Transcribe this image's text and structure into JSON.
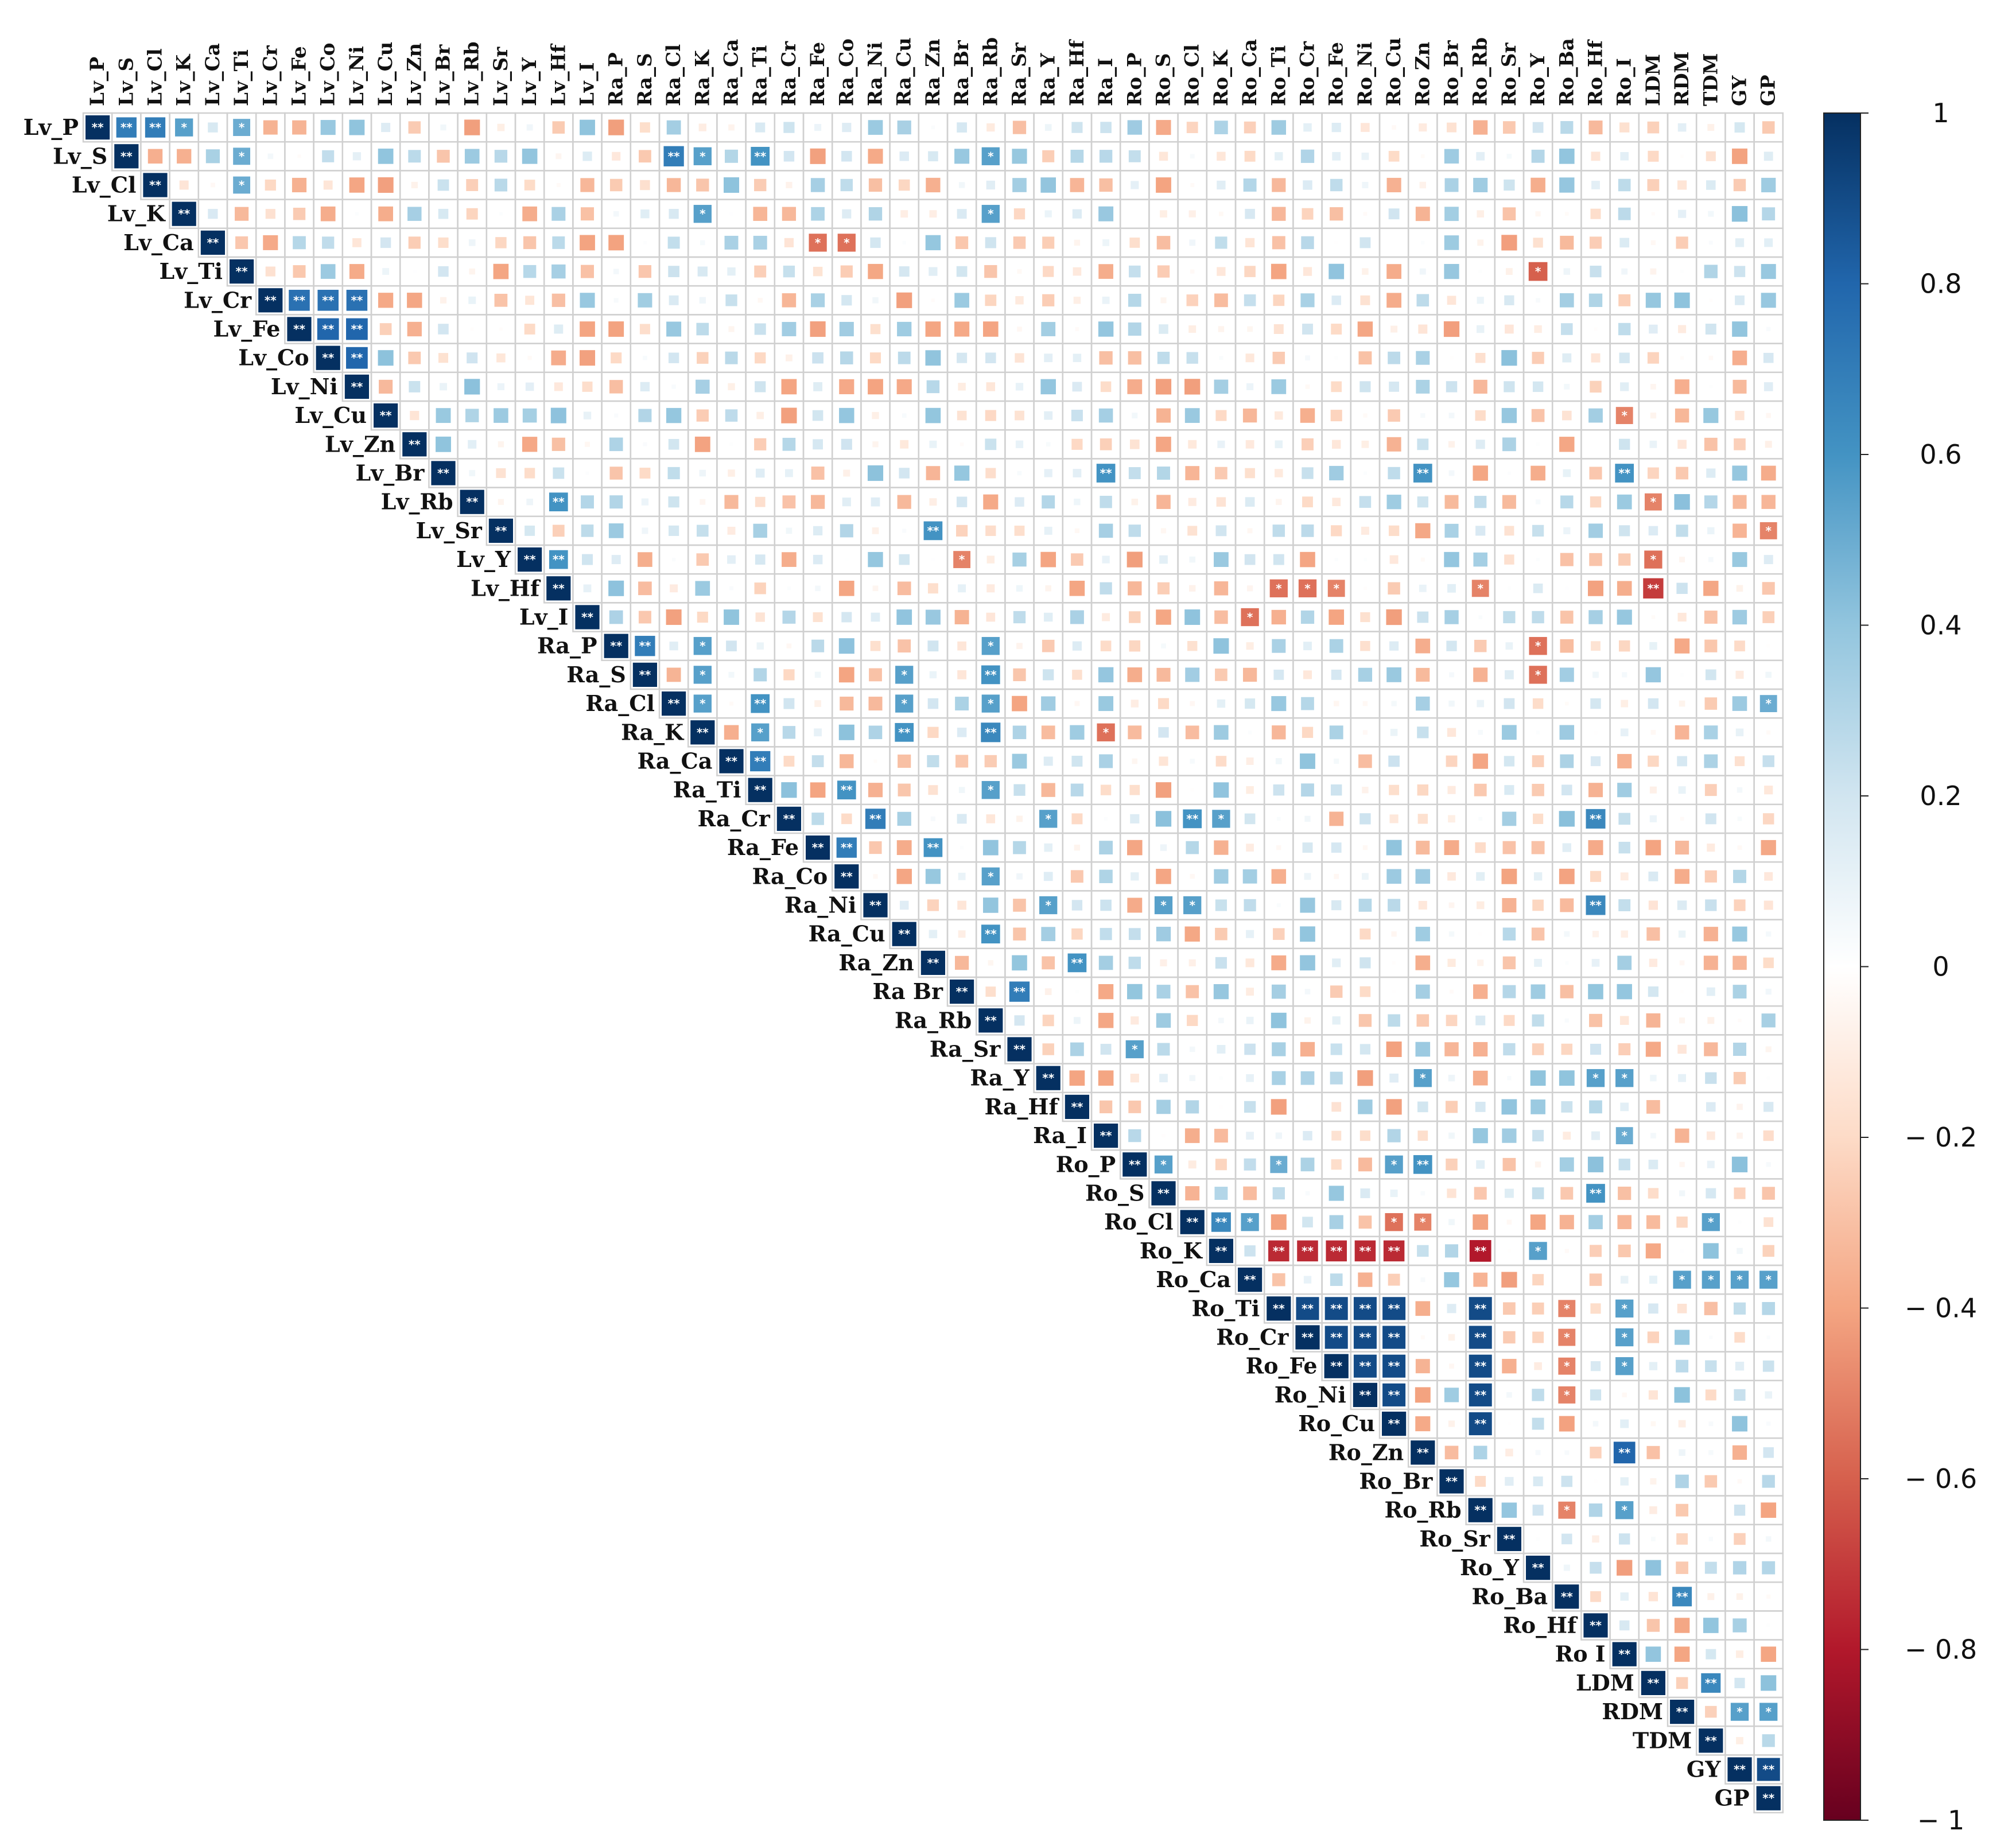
{
  "chart_data": {
    "type": "heatmap",
    "subtype": "upper-triangle correlation matrix",
    "value_range": [
      -1,
      1
    ],
    "variables": [
      "Lv_P",
      "Lv_S",
      "Lv_Cl",
      "Lv_K",
      "Lv_Ca",
      "Lv_Ti",
      "Lv_Cr",
      "Lv_Fe",
      "Lv_Co",
      "Lv_Ni",
      "Lv_Cu",
      "Lv_Zn",
      "Lv_Br",
      "Lv_Rb",
      "Lv_Sr",
      "Lv_Y",
      "Lv_Hf",
      "Lv_I",
      "Ra_P",
      "Ra_S",
      "Ra_Cl",
      "Ra_K",
      "Ra_Ca",
      "Ra_Ti",
      "Ra_Cr",
      "Ra_Fe",
      "Ra_Co",
      "Ra_Ni",
      "Ra_Cu",
      "Ra_Zn",
      "Ra_Br",
      "Ra_Rb",
      "Ra_Sr",
      "Ra_Y",
      "Ra_Hf",
      "Ra_I",
      "Ro_P",
      "Ro_S",
      "Ro_Cl",
      "Ro_K",
      "Ro_Ca",
      "Ro_Ti",
      "Ro_Cr",
      "Ro_Fe",
      "Ro_Ni",
      "Ro_Cu",
      "Ro_Zn",
      "Ro_Br",
      "Ro_Rb",
      "Ro_Sr",
      "Ro_Y",
      "Ro_Ba",
      "Ro_Hf",
      "Ro_I",
      "LDM",
      "RDM",
      "TDM",
      "GY",
      "GP"
    ],
    "column_labels": [
      "Lv_P",
      "Lv_S",
      "Lv_Cl",
      "Lv_K",
      "Lv_Ca",
      "Lv_Ti",
      "Lv_Cr",
      "Lv_Fe",
      "Lv_Co",
      "Lv_Ni",
      "Lv_Cu",
      "Lv_Zn",
      "Lv_Br",
      "Lv_Rb",
      "Lv_Sr",
      "Lv_Y",
      "Lv_Hf",
      "Lv_I",
      "Ra_P",
      "Ra_S",
      "Ra_Cl",
      "Ra_K",
      "Ra_Ca",
      "Ra_Ti",
      "Ra_Cr",
      "Ra_Fe",
      "Ra_Co",
      "Ra_Ni",
      "Ra_Cu",
      "Ra_Zn",
      "Ra_Br",
      "Ra_Rb",
      "Ra_Sr",
      "Ra_Y",
      "Ra_Hf",
      "Ra_I",
      "Ro_P",
      "Ro_S",
      "Ro_Cl",
      "Ro_K",
      "Ro_Ca",
      "Ro_Ti",
      "Ro_Cr",
      "Ro_Fe",
      "Ro_Ni",
      "Ro_Cu",
      "Ro Zn",
      "Ro_Br",
      "Ro_Rb",
      "Ro_Sr",
      "Ro_Y",
      "Ro_Ba",
      "Ro_Hf",
      "Ro_I",
      "LDM",
      "RDM",
      "TDM",
      "GY",
      "GP"
    ],
    "row_labels": [
      "Lv_P",
      "Lv_S",
      "Lv_Cl",
      "Lv_K",
      "Lv_Ca",
      "Lv_Ti",
      "Lv_Cr",
      "Lv_Fe",
      "Lv_Co",
      "Lv_Ni",
      "Lv_Cu",
      "Lv_Zn",
      "Lv_Br",
      "Lv_Rb",
      "Lv_Sr",
      "Lv_Y",
      "Lv_Hf",
      "Lv_I",
      "Ra_P",
      "Ra_S",
      "Ra_Cl",
      "Ra_K",
      "Ra_Ca",
      "Ra_Ti",
      "Ra_Cr",
      "Ra_Fe",
      "Ra_Co",
      "Ra_Ni",
      "Ra_Cu",
      "Ra_Zn",
      "Ra Br",
      "Ra_Rb",
      "Ra_Sr",
      "Ra_Y",
      "Ra_Hf",
      "Ra_I",
      "Ro_P",
      "Ro_S",
      "Ro_Cl",
      "Ro_K",
      "Ro_Ca",
      "Ro_Ti",
      "Ro_Cr",
      "Ro_Fe",
      "Ro_Ni",
      "Ro_Cu",
      "Ro_Zn",
      "Ro_Br",
      "Ro_Rb",
      "Ro_Sr",
      "Ro_Y",
      "Ro_Ba",
      "Ro_Hf",
      "Ro I",
      "LDM",
      "RDM",
      "TDM",
      "GY",
      "GP"
    ],
    "diagonal": {
      "value": 1,
      "significance": "**"
    },
    "significance_legend": {
      "*": "p < 0.05",
      "**": "p < 0.01"
    },
    "significant_cells": [
      {
        "row": "Lv_P",
        "col": "Lv_S",
        "r": 0.7,
        "sig": "**"
      },
      {
        "row": "Lv_P",
        "col": "Lv_Cl",
        "r": 0.7,
        "sig": "**"
      },
      {
        "row": "Lv_P",
        "col": "Lv_K",
        "r": 0.55,
        "sig": "*"
      },
      {
        "row": "Lv_P",
        "col": "Lv_Ti",
        "r": 0.5,
        "sig": "*"
      },
      {
        "row": "Lv_S",
        "col": "Lv_Ti",
        "r": 0.5,
        "sig": "*"
      },
      {
        "row": "Lv_S",
        "col": "Ra_Cl",
        "r": 0.7,
        "sig": "**"
      },
      {
        "row": "Lv_S",
        "col": "Ra_K",
        "r": 0.55,
        "sig": "*"
      },
      {
        "row": "Lv_S",
        "col": "Ra_Ti",
        "r": 0.6,
        "sig": "**"
      },
      {
        "row": "Lv_S",
        "col": "Ra_Rb",
        "r": 0.55,
        "sig": "*"
      },
      {
        "row": "Lv_Cl",
        "col": "Lv_Ti",
        "r": 0.5,
        "sig": "*"
      },
      {
        "row": "Lv_K",
        "col": "Ra_K",
        "r": 0.55,
        "sig": "*"
      },
      {
        "row": "Lv_K",
        "col": "Ra_Rb",
        "r": 0.55,
        "sig": "*"
      },
      {
        "row": "Lv_Ca",
        "col": "Ra_Fe",
        "r": -0.55,
        "sig": "*"
      },
      {
        "row": "Lv_Ca",
        "col": "Ra_Co",
        "r": -0.55,
        "sig": "*"
      },
      {
        "row": "Lv_Ti",
        "col": "Ro_Y",
        "r": -0.6,
        "sig": "*"
      },
      {
        "row": "Lv_Cr",
        "col": "Lv_Fe",
        "r": 0.75,
        "sig": "**"
      },
      {
        "row": "Lv_Cr",
        "col": "Lv_Co",
        "r": 0.75,
        "sig": "**"
      },
      {
        "row": "Lv_Cr",
        "col": "Lv_Ni",
        "r": 0.75,
        "sig": "**"
      },
      {
        "row": "Lv_Fe",
        "col": "Lv_Co",
        "r": 0.8,
        "sig": "**"
      },
      {
        "row": "Lv_Fe",
        "col": "Lv_Ni",
        "r": 0.8,
        "sig": "**"
      },
      {
        "row": "Lv_Co",
        "col": "Lv_Ni",
        "r": 0.8,
        "sig": "**"
      },
      {
        "row": "Lv_Cu",
        "col": "Ro_I",
        "r": -0.5,
        "sig": "*"
      },
      {
        "row": "Lv_Br",
        "col": "Ra_I",
        "r": 0.6,
        "sig": "**"
      },
      {
        "row": "Lv_Br",
        "col": "Ro_Zn",
        "r": 0.6,
        "sig": "**"
      },
      {
        "row": "Lv_Br",
        "col": "Ro_I",
        "r": 0.6,
        "sig": "**"
      },
      {
        "row": "Lv_Rb",
        "col": "Lv_Hf",
        "r": 0.6,
        "sig": "**"
      },
      {
        "row": "Lv_Rb",
        "col": "LDM",
        "r": -0.5,
        "sig": "*"
      },
      {
        "row": "Lv_Sr",
        "col": "Ra_Zn",
        "r": 0.6,
        "sig": "**"
      },
      {
        "row": "Lv_Sr",
        "col": "GP",
        "r": -0.5,
        "sig": "*"
      },
      {
        "row": "Lv_Y",
        "col": "Lv_Hf",
        "r": 0.6,
        "sig": "**"
      },
      {
        "row": "Lv_Y",
        "col": "Ra_Br",
        "r": -0.5,
        "sig": "*"
      },
      {
        "row": "Lv_Y",
        "col": "LDM",
        "r": -0.55,
        "sig": "*"
      },
      {
        "row": "Lv_Hf",
        "col": "Ro_Ti",
        "r": -0.55,
        "sig": "*"
      },
      {
        "row": "Lv_Hf",
        "col": "Ro_Cr",
        "r": -0.55,
        "sig": "*"
      },
      {
        "row": "Lv_Hf",
        "col": "Ro_Fe",
        "r": -0.5,
        "sig": "*"
      },
      {
        "row": "Lv_Hf",
        "col": "Ro_Rb",
        "r": -0.5,
        "sig": "*"
      },
      {
        "row": "Lv_Hf",
        "col": "LDM",
        "r": -0.7,
        "sig": "**"
      },
      {
        "row": "Lv_I",
        "col": "Ro_Ca",
        "r": -0.55,
        "sig": "*"
      },
      {
        "row": "Ra_P",
        "col": "Ra_S",
        "r": 0.7,
        "sig": "**"
      },
      {
        "row": "Ra_P",
        "col": "Ra_K",
        "r": 0.55,
        "sig": "*"
      },
      {
        "row": "Ra_P",
        "col": "Ra_Rb",
        "r": 0.55,
        "sig": "*"
      },
      {
        "row": "Ra_P",
        "col": "Ro_Y",
        "r": -0.55,
        "sig": "*"
      },
      {
        "row": "Ra_S",
        "col": "Ra_K",
        "r": 0.55,
        "sig": "*"
      },
      {
        "row": "Ra_S",
        "col": "Ra_Cu",
        "r": 0.55,
        "sig": "*"
      },
      {
        "row": "Ra_S",
        "col": "Ra_Rb",
        "r": 0.6,
        "sig": "**"
      },
      {
        "row": "Ra_S",
        "col": "Ro_Y",
        "r": -0.55,
        "sig": "*"
      },
      {
        "row": "Ra_Cl",
        "col": "Ra_K",
        "r": 0.55,
        "sig": "*"
      },
      {
        "row": "Ra_Cl",
        "col": "Ra_Ti",
        "r": 0.6,
        "sig": "**"
      },
      {
        "row": "Ra_Cl",
        "col": "Ra_Cu",
        "r": 0.55,
        "sig": "*"
      },
      {
        "row": "Ra_Cl",
        "col": "Ra_Rb",
        "r": 0.55,
        "sig": "*"
      },
      {
        "row": "Ra_Cl",
        "col": "GP",
        "r": 0.5,
        "sig": "*"
      },
      {
        "row": "Ra_K",
        "col": "Ra_Ti",
        "r": 0.55,
        "sig": "*"
      },
      {
        "row": "Ra_K",
        "col": "Ra_Cu",
        "r": 0.6,
        "sig": "**"
      },
      {
        "row": "Ra_K",
        "col": "Ra_Rb",
        "r": 0.65,
        "sig": "**"
      },
      {
        "row": "Ra_K",
        "col": "Ra_I",
        "r": -0.55,
        "sig": "*"
      },
      {
        "row": "Ra_Ca",
        "col": "Ra_Ti",
        "r": 0.7,
        "sig": "**"
      },
      {
        "row": "Ra_Ti",
        "col": "Ra_Co",
        "r": 0.6,
        "sig": "**"
      },
      {
        "row": "Ra_Ti",
        "col": "Ra_Rb",
        "r": 0.55,
        "sig": "*"
      },
      {
        "row": "Ra_Cr",
        "col": "Ra_Ni",
        "r": 0.7,
        "sig": "**"
      },
      {
        "row": "Ra_Cr",
        "col": "Ra_Y",
        "r": 0.55,
        "sig": "*"
      },
      {
        "row": "Ra_Cr",
        "col": "Ro_Cl",
        "r": 0.6,
        "sig": "**"
      },
      {
        "row": "Ra_Cr",
        "col": "Ro_K",
        "r": 0.55,
        "sig": "*"
      },
      {
        "row": "Ra_Cr",
        "col": "Ro_Hf",
        "r": 0.65,
        "sig": "**"
      },
      {
        "row": "Ra_Fe",
        "col": "Ra_Co",
        "r": 0.7,
        "sig": "**"
      },
      {
        "row": "Ra_Fe",
        "col": "Ra_Zn",
        "r": 0.6,
        "sig": "**"
      },
      {
        "row": "Ra_Co",
        "col": "Ra_Rb",
        "r": 0.55,
        "sig": "*"
      },
      {
        "row": "Ra_Ni",
        "col": "Ra_Y",
        "r": 0.55,
        "sig": "*"
      },
      {
        "row": "Ra_Ni",
        "col": "Ro_S",
        "r": 0.55,
        "sig": "*"
      },
      {
        "row": "Ra_Ni",
        "col": "Ro_Cl",
        "r": 0.55,
        "sig": "*"
      },
      {
        "row": "Ra_Ni",
        "col": "Ro_Hf",
        "r": 0.65,
        "sig": "**"
      },
      {
        "row": "Ra_Cu",
        "col": "Ra_Rb",
        "r": 0.6,
        "sig": "**"
      },
      {
        "row": "Ra_Zn",
        "col": "Ra_Hf",
        "r": 0.6,
        "sig": "**"
      },
      {
        "row": "Ra_Br",
        "col": "Ra_Sr",
        "r": 0.7,
        "sig": "**"
      },
      {
        "row": "Ra_Sr",
        "col": "Ro_P",
        "r": 0.55,
        "sig": "*"
      },
      {
        "row": "Ra_Y",
        "col": "Ro_Zn",
        "r": 0.55,
        "sig": "*"
      },
      {
        "row": "Ra_Y",
        "col": "Ro_Hf",
        "r": 0.55,
        "sig": "*"
      },
      {
        "row": "Ra_Y",
        "col": "Ro_I",
        "r": 0.55,
        "sig": "*"
      },
      {
        "row": "Ra_I",
        "col": "Ro_I",
        "r": 0.5,
        "sig": "*"
      },
      {
        "row": "Ro_P",
        "col": "Ro_S",
        "r": 0.55,
        "sig": "*"
      },
      {
        "row": "Ro_P",
        "col": "Ro_Ti",
        "r": 0.5,
        "sig": "*"
      },
      {
        "row": "Ro_P",
        "col": "Ro_Cu",
        "r": 0.55,
        "sig": "*"
      },
      {
        "row": "Ro_P",
        "col": "Ro_Zn",
        "r": 0.6,
        "sig": "**"
      },
      {
        "row": "Ro_S",
        "col": "Ro_Hf",
        "r": 0.6,
        "sig": "**"
      },
      {
        "row": "Ro_Cl",
        "col": "Ro_K",
        "r": 0.65,
        "sig": "**"
      },
      {
        "row": "Ro_Cl",
        "col": "Ro_Ca",
        "r": 0.55,
        "sig": "*"
      },
      {
        "row": "Ro_Cl",
        "col": "Ro_Cu",
        "r": -0.55,
        "sig": "*"
      },
      {
        "row": "Ro_Cl",
        "col": "Ro_Zn",
        "r": -0.5,
        "sig": "*"
      },
      {
        "row": "Ro_Cl",
        "col": "TDM",
        "r": 0.55,
        "sig": "*"
      },
      {
        "row": "Ro_K",
        "col": "Ro_Ti",
        "r": -0.75,
        "sig": "**"
      },
      {
        "row": "Ro_K",
        "col": "Ro_Cr",
        "r": -0.75,
        "sig": "**"
      },
      {
        "row": "Ro_K",
        "col": "Ro_Fe",
        "r": -0.75,
        "sig": "**"
      },
      {
        "row": "Ro_K",
        "col": "Ro_Ni",
        "r": -0.75,
        "sig": "**"
      },
      {
        "row": "Ro_K",
        "col": "Ro_Cu",
        "r": -0.75,
        "sig": "**"
      },
      {
        "row": "Ro_K",
        "col": "Ro_Rb",
        "r": -0.8,
        "sig": "**"
      },
      {
        "row": "Ro_K",
        "col": "Ro_Y",
        "r": 0.55,
        "sig": "*"
      },
      {
        "row": "Ro_Ca",
        "col": "RDM",
        "r": 0.55,
        "sig": "*"
      },
      {
        "row": "Ro_Ca",
        "col": "TDM",
        "r": 0.55,
        "sig": "*"
      },
      {
        "row": "Ro_Ca",
        "col": "GY",
        "r": 0.55,
        "sig": "*"
      },
      {
        "row": "Ro_Ca",
        "col": "GP",
        "r": 0.55,
        "sig": "*"
      },
      {
        "row": "Ro_Ti",
        "col": "Ro_Cr",
        "r": 0.9,
        "sig": "**"
      },
      {
        "row": "Ro_Ti",
        "col": "Ro_Fe",
        "r": 0.9,
        "sig": "**"
      },
      {
        "row": "Ro_Ti",
        "col": "Ro_Ni",
        "r": 0.9,
        "sig": "**"
      },
      {
        "row": "Ro_Ti",
        "col": "Ro_Cu",
        "r": 0.9,
        "sig": "**"
      },
      {
        "row": "Ro_Ti",
        "col": "Ro_Rb",
        "r": 0.9,
        "sig": "**"
      },
      {
        "row": "Ro_Ti",
        "col": "Ro_Ba",
        "r": -0.5,
        "sig": "*"
      },
      {
        "row": "Ro_Ti",
        "col": "Ro_I",
        "r": 0.55,
        "sig": "*"
      },
      {
        "row": "Ro_Cr",
        "col": "Ro_Fe",
        "r": 0.9,
        "sig": "**"
      },
      {
        "row": "Ro_Cr",
        "col": "Ro_Ni",
        "r": 0.9,
        "sig": "**"
      },
      {
        "row": "Ro_Cr",
        "col": "Ro_Cu",
        "r": 0.9,
        "sig": "**"
      },
      {
        "row": "Ro_Cr",
        "col": "Ro_Rb",
        "r": 0.9,
        "sig": "**"
      },
      {
        "row": "Ro_Cr",
        "col": "Ro_Ba",
        "r": -0.5,
        "sig": "*"
      },
      {
        "row": "Ro_Cr",
        "col": "Ro_I",
        "r": 0.55,
        "sig": "*"
      },
      {
        "row": "Ro_Fe",
        "col": "Ro_Ni",
        "r": 0.9,
        "sig": "**"
      },
      {
        "row": "Ro_Fe",
        "col": "Ro_Cu",
        "r": 0.9,
        "sig": "**"
      },
      {
        "row": "Ro_Fe",
        "col": "Ro_Rb",
        "r": 0.9,
        "sig": "**"
      },
      {
        "row": "Ro_Fe",
        "col": "Ro_Ba",
        "r": -0.5,
        "sig": "*"
      },
      {
        "row": "Ro_Fe",
        "col": "Ro_I",
        "r": 0.55,
        "sig": "*"
      },
      {
        "row": "Ro_Ni",
        "col": "Ro_Cu",
        "r": 0.9,
        "sig": "**"
      },
      {
        "row": "Ro_Ni",
        "col": "Ro_Rb",
        "r": 0.9,
        "sig": "**"
      },
      {
        "row": "Ro_Ni",
        "col": "Ro_Ba",
        "r": -0.5,
        "sig": "*"
      },
      {
        "row": "Ro_Cu",
        "col": "Ro_Rb",
        "r": 0.9,
        "sig": "**"
      },
      {
        "row": "Ro_Zn",
        "col": "Ro_I",
        "r": 0.8,
        "sig": "**"
      },
      {
        "row": "Ro_Rb",
        "col": "Ro_Ba",
        "r": -0.5,
        "sig": "*"
      },
      {
        "row": "Ro_Rb",
        "col": "Ro_I",
        "r": 0.55,
        "sig": "*"
      },
      {
        "row": "Ro_Ba",
        "col": "RDM",
        "r": 0.65,
        "sig": "**"
      },
      {
        "row": "LDM",
        "col": "TDM",
        "r": 0.65,
        "sig": "**"
      },
      {
        "row": "RDM",
        "col": "GY",
        "r": 0.55,
        "sig": "*"
      },
      {
        "row": "RDM",
        "col": "GP",
        "r": 0.55,
        "sig": "*"
      },
      {
        "row": "GY",
        "col": "GP",
        "r": 0.9,
        "sig": "**"
      }
    ],
    "colorbar": {
      "ticks": [
        1,
        0.8,
        0.6,
        0.4,
        0.2,
        0,
        -0.2,
        -0.4,
        -0.6,
        -0.8,
        -1
      ],
      "tick_labels": [
        "1",
        "0.8",
        "0.6",
        "0.4",
        "0.2",
        "0",
        "− 0.2",
        "− 0.4",
        "− 0.6",
        "− 0.8",
        "− 1"
      ],
      "colors": {
        "negative_end": "#67001f",
        "mid_negative": "#d6604d",
        "light_negative": "#fddbc7",
        "zero": "#ffffff",
        "light_positive": "#d1e5f0",
        "mid_positive": "#4393c3",
        "positive_end": "#053061"
      }
    },
    "grid_color": "#d0d0d0",
    "title": "",
    "xlabel": "",
    "ylabel": ""
  }
}
